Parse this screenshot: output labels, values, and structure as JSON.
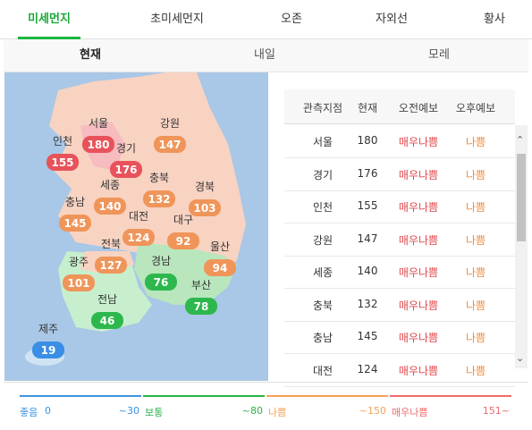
{
  "tabs": [
    "미세먼지",
    "초미세먼지",
    "오존",
    "자외선",
    "황사"
  ],
  "subtabs": [
    "현재",
    "내일",
    "모레"
  ],
  "map": {
    "regions": [
      {
        "name": "서울",
        "value": 180,
        "color": "#e8525a"
      },
      {
        "name": "인천",
        "value": 155,
        "color": "#e8525a"
      },
      {
        "name": "경기",
        "value": 176,
        "color": "#e8525a"
      },
      {
        "name": "강원",
        "value": 147,
        "color": "#f0955a"
      },
      {
        "name": "세종",
        "value": 140,
        "color": "#f0955a"
      },
      {
        "name": "충북",
        "value": 132,
        "color": "#f0955a"
      },
      {
        "name": "경북",
        "value": 103,
        "color": "#f0955a"
      },
      {
        "name": "충남",
        "value": 145,
        "color": "#f0955a"
      },
      {
        "name": "대전",
        "value": 124,
        "color": "#f0955a"
      },
      {
        "name": "대구",
        "value": 92,
        "color": "#f0955a"
      },
      {
        "name": "울산",
        "value": 94,
        "color": "#f0955a"
      },
      {
        "name": "전북",
        "value": 127,
        "color": "#f0955a"
      },
      {
        "name": "경남",
        "value": 76,
        "color": "#2db84d"
      },
      {
        "name": "광주",
        "value": 101,
        "color": "#f0955a"
      },
      {
        "name": "부산",
        "value": 78,
        "color": "#2db84d"
      },
      {
        "name": "전남",
        "value": 46,
        "color": "#2db84d"
      },
      {
        "name": "제주",
        "value": 19,
        "color": "#3a8ee6"
      }
    ]
  },
  "table": {
    "header": [
      "관측지점",
      "현재",
      "오전예보",
      "오후예보"
    ],
    "rows": [
      [
        "서울",
        180,
        "매우나쁨",
        "나쁨"
      ],
      [
        "경기",
        176,
        "매우나쁨",
        "나쁨"
      ],
      [
        "인천",
        155,
        "매우나쁨",
        "나쁨"
      ],
      [
        "강원",
        147,
        "매우나쁨",
        "나쁨"
      ],
      [
        "세종",
        140,
        "매우나쁨",
        "나쁨"
      ],
      [
        "충북",
        132,
        "매우나쁨",
        "나쁨"
      ],
      [
        "충남",
        145,
        "매우나쁨",
        "나쁨"
      ],
      [
        "대전",
        124,
        "매우나쁨",
        "나쁨"
      ]
    ]
  },
  "legend": [
    {
      "name": "좋음",
      "start": "0",
      "end": "~30",
      "color": "#3c95e0"
    },
    {
      "name": "보통",
      "end": "~80",
      "color": "#2ab24a"
    },
    {
      "name": "나쁨",
      "end": "~150",
      "color": "#f5a15a"
    },
    {
      "name": "매우나쁨",
      "end": "151~",
      "color": "#ee6b6b"
    }
  ]
}
